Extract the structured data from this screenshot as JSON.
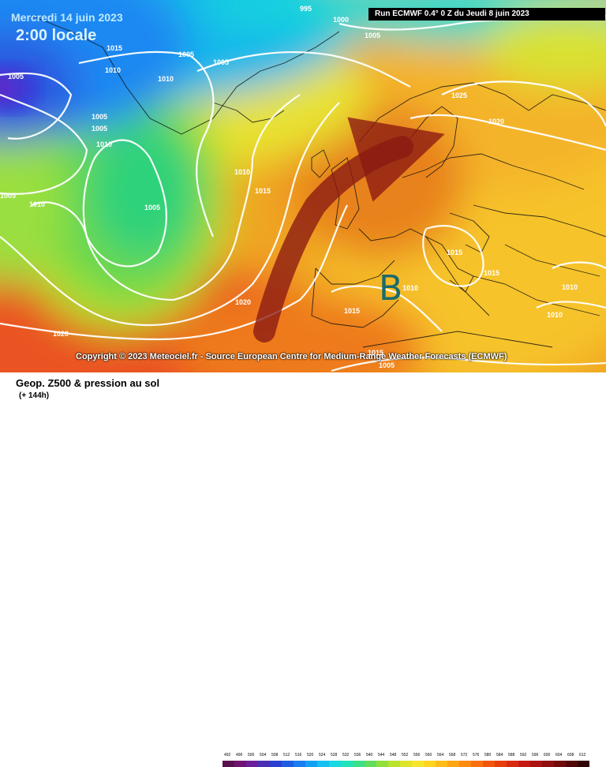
{
  "header": {
    "date": "Mercredi 14 juin 2023",
    "time": "2:00 locale",
    "run": "Run ECMWF 0.4° 0 Z du Jeudi 8 juin 2023"
  },
  "copyright": "Copyright © 2023 Meteociel.fr - Source European Centre for Medium-Range Weather Forecasts (ECMWF)",
  "low_marker": "B",
  "pressure_labels": [
    "995",
    "1000",
    "1005",
    "1015",
    "1005",
    "1005",
    "1010",
    "1010",
    "1005",
    "1005",
    "1005",
    "1010",
    "1005",
    "1010",
    "1015",
    "1005",
    "1020",
    "1020",
    "1015",
    "1010",
    "1025",
    "1020",
    "1015",
    "1015",
    "1010",
    "1010",
    "1010",
    "1015",
    "1005",
    "1010"
  ],
  "footer": {
    "title": "Geop. Z500 & pression au sol",
    "subtitle": "(+ 144h)"
  },
  "legend": {
    "ticks": [
      "492",
      "496",
      "500",
      "504",
      "508",
      "512",
      "516",
      "520",
      "524",
      "528",
      "532",
      "536",
      "540",
      "544",
      "548",
      "552",
      "556",
      "560",
      "564",
      "568",
      "572",
      "576",
      "580",
      "584",
      "588",
      "592",
      "596",
      "600",
      "604",
      "608",
      "612"
    ],
    "colors": [
      "#5a0f4f",
      "#6e1470",
      "#6a1e9a",
      "#4a2fb5",
      "#2b3fd0",
      "#1f5de0",
      "#1a7ef0",
      "#12a0f5",
      "#14c0f0",
      "#18d8e0",
      "#22e2b8",
      "#3be08a",
      "#62de5a",
      "#8fe03a",
      "#b8e22c",
      "#dde42a",
      "#f5e52c",
      "#ffd41f",
      "#ffbc18",
      "#ffa412",
      "#ff8a0f",
      "#fa700c",
      "#f2560b",
      "#e83e0c",
      "#d92a10",
      "#c41a12",
      "#ac1212",
      "#8f0e0e",
      "#720a0a",
      "#520707",
      "#300404"
    ]
  },
  "colors": {
    "arrow": "#8b1a12",
    "low_marker": "#1a6b6b",
    "isobar": "#ffffff"
  }
}
